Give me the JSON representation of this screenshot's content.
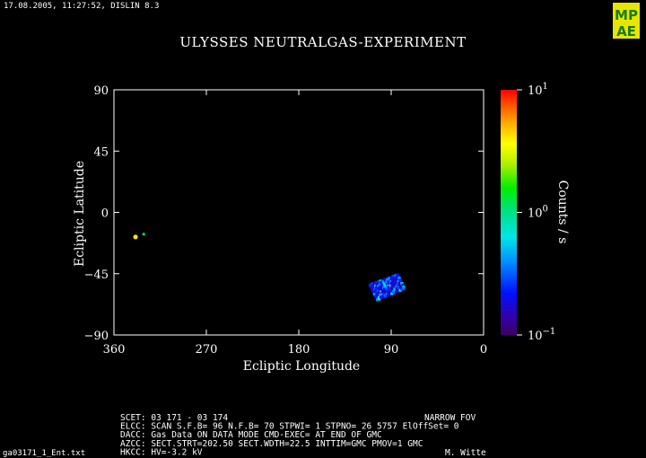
{
  "header": {
    "timestamp": "17.08.2005, 11:27:52, DISLIN 8.3",
    "logo_text": "MPAE"
  },
  "footer": {
    "file_label": "ga03171_1_Ent.txt",
    "author": "M. Witte",
    "fov": "NARROW FOV",
    "lines": [
      "SCET: 03 171 - 03 174",
      "ELCC: SCAN  S.F.B= 96 N.F.B= 70 STPWI=  1  STPNO= 26   5757   ElOffSet= 0",
      "DACC: Gas Data ON    DATA MODE CMD-EXEC= AT END OF GMC",
      "AZCC: SECT.STRT=202.50 SECT.WDTH=22.5 INTTIM=GMC PMOV=1 GMC",
      "HKCC: HV=-3.2 kV"
    ]
  },
  "chart_data": {
    "type": "heatmap",
    "title": "ULYSSES NEUTRALGAS-EXPERIMENT",
    "xlabel": "Ecliptic Longitude",
    "ylabel": "Ecliptic Latitude",
    "xlim": [
      360,
      0
    ],
    "ylim": [
      -90,
      90
    ],
    "x_ticks": [
      "360",
      "270",
      "180",
      "90",
      "0"
    ],
    "x_tick_values": [
      360,
      270,
      180,
      90,
      0
    ],
    "y_ticks": [
      "90",
      "45",
      "0",
      "−45",
      "−90"
    ],
    "y_tick_values": [
      90,
      45,
      0,
      -45,
      -90
    ],
    "colorbar": {
      "label": "Counts / s",
      "scale": "log",
      "range": [
        0.1,
        10
      ],
      "ticks": [
        {
          "base": "10",
          "exp": "1",
          "value": 10
        },
        {
          "base": "10",
          "exp": "0",
          "value": 1
        },
        {
          "base": "10",
          "exp": "−1",
          "value": 0.1
        }
      ]
    },
    "isolated_points": [
      {
        "lon": 339,
        "lat": -18,
        "value": 3.0,
        "color": "#ffe400"
      },
      {
        "lon": 331,
        "lat": -16,
        "value": 0.9,
        "color": "#00e040"
      }
    ],
    "patch": {
      "corners": [
        [
          112,
          -53
        ],
        [
          83,
          -45
        ],
        [
          76,
          -56
        ],
        [
          104,
          -65
        ]
      ],
      "value_range": [
        0.15,
        0.8
      ]
    }
  }
}
